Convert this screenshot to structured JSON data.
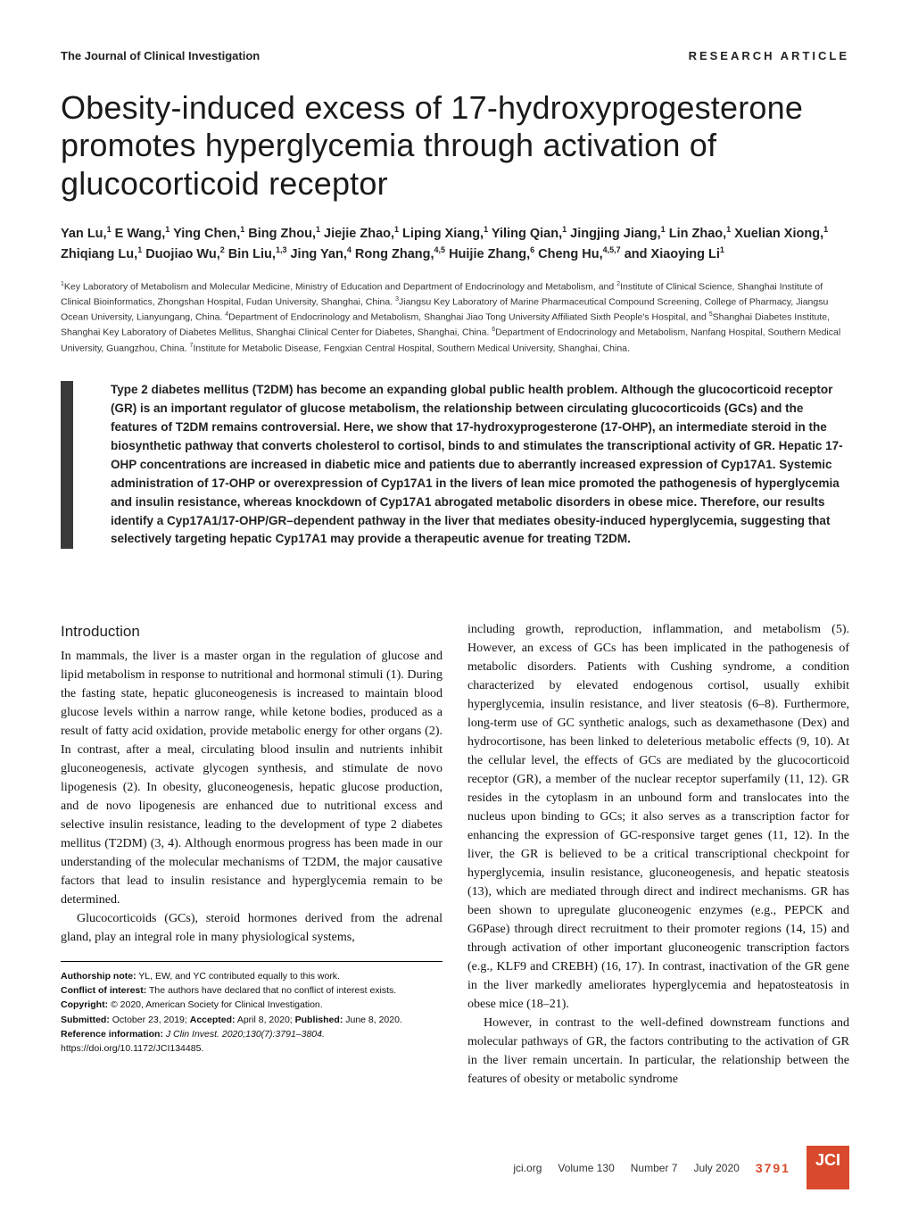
{
  "header": {
    "journal": "The Journal of Clinical Investigation",
    "type": "RESEARCH ARTICLE"
  },
  "title": "Obesity-induced excess of 17-hydroxyprogesterone promotes hyperglycemia through activation of glucocorticoid receptor",
  "authors_html": "Yan Lu,<sup>1</sup> E Wang,<sup>1</sup> Ying Chen,<sup>1</sup> Bing Zhou,<sup>1</sup> Jiejie Zhao,<sup>1</sup> Liping Xiang,<sup>1</sup> Yiling Qian,<sup>1</sup> Jingjing Jiang,<sup>1</sup> Lin Zhao,<sup>1</sup> Xuelian Xiong,<sup>1</sup> Zhiqiang Lu,<sup>1</sup> Duojiao Wu,<sup>2</sup> Bin Liu,<sup>1,3</sup> Jing Yan,<sup>4</sup> Rong Zhang,<sup>4,5</sup> Huijie Zhang,<sup>6</sup> Cheng Hu,<sup>4,5,7</sup> and Xiaoying Li<sup>1</sup>",
  "affiliations_html": "<sup>1</sup>Key Laboratory of Metabolism and Molecular Medicine, Ministry of Education and Department of Endocrinology and Metabolism, and <sup>2</sup>Institute of Clinical Science, Shanghai Institute of Clinical Bioinformatics, Zhongshan Hospital, Fudan University, Shanghai, China. <sup>3</sup>Jiangsu Key Laboratory of Marine Pharmaceutical Compound Screening, College of Pharmacy, Jiangsu Ocean University, Lianyungang, China. <sup>4</sup>Department of Endocrinology and Metabolism, Shanghai Jiao Tong University Affiliated Sixth People's Hospital, and <sup>5</sup>Shanghai Diabetes Institute, Shanghai Key Laboratory of Diabetes Mellitus, Shanghai Clinical Center for Diabetes, Shanghai, China. <sup>6</sup>Department of Endocrinology and Metabolism, Nanfang Hospital, Southern Medical University, Guangzhou, China. <sup>7</sup>Institute for Metabolic Disease, Fengxian Central Hospital, Southern Medical University, Shanghai, China.",
  "abstract": "Type 2 diabetes mellitus (T2DM) has become an expanding global public health problem. Although the glucocorticoid receptor (GR) is an important regulator of glucose metabolism, the relationship between circulating glucocorticoids (GCs) and the features of T2DM remains controversial. Here, we show that 17-hydroxyprogesterone (17-OHP), an intermediate steroid in the biosynthetic pathway that converts cholesterol to cortisol, binds to and stimulates the transcriptional activity of GR. Hepatic 17-OHP concentrations are increased in diabetic mice and patients due to aberrantly increased expression of Cyp17A1. Systemic administration of 17-OHP or overexpression of Cyp17A1 in the livers of lean mice promoted the pathogenesis of hyperglycemia and insulin resistance, whereas knockdown of Cyp17A1 abrogated metabolic disorders in obese mice. Therefore, our results identify a Cyp17A1/17-OHP/GR–dependent pathway in the liver that mediates obesity-induced hyperglycemia, suggesting that selectively targeting hepatic Cyp17A1 may provide a therapeutic avenue for treating T2DM.",
  "body": {
    "section_head": "Introduction",
    "col1_p1": "In mammals, the liver is a master organ in the regulation of glucose and lipid metabolism in response to nutritional and hormonal stimuli (1). During the fasting state, hepatic gluconeogenesis is increased to maintain blood glucose levels within a narrow range, while ketone bodies, produced as a result of fatty acid oxidation, provide metabolic energy for other organs (2). In contrast, after a meal, circulating blood insulin and nutrients inhibit gluconeogenesis, activate glycogen synthesis, and stimulate de novo lipogenesis (2). In obesity, gluconeogenesis, hepatic glucose production, and de novo lipogenesis are enhanced due to nutritional excess and selective insulin resistance, leading to the development of type 2 diabetes mellitus (T2DM) (3, 4). Although enormous progress has been made in our understanding of the molecular mechanisms of T2DM, the major causative factors that lead to insulin resistance and hyperglycemia remain to be determined.",
    "col1_p2": "Glucocorticoids (GCs), steroid hormones derived from the adrenal gland, play an integral role in many physiological systems,",
    "col2_p1": "including growth, reproduction, inflammation, and metabolism (5). However, an excess of GCs has been implicated in the pathogenesis of metabolic disorders. Patients with Cushing syndrome, a condition characterized by elevated endogenous cortisol, usually exhibit hyperglycemia, insulin resistance, and liver steatosis (6–8). Furthermore, long-term use of GC synthetic analogs, such as dexamethasone (Dex) and hydrocortisone, has been linked to deleterious metabolic effects (9, 10). At the cellular level, the effects of GCs are mediated by the glucocorticoid receptor (GR), a member of the nuclear receptor superfamily (11, 12). GR resides in the cytoplasm in an unbound form and translocates into the nucleus upon binding to GCs; it also serves as a transcription factor for enhancing the expression of GC-responsive target genes (11, 12). In the liver, the GR is believed to be a critical transcriptional checkpoint for hyperglycemia, insulin resistance, gluconeogenesis, and hepatic steatosis (13), which are mediated through direct and indirect mechanisms. GR has been shown to upregulate gluconeogenic enzymes (e.g., PEPCK and G6Pase) through direct recruitment to their promoter regions (14, 15) and through activation of other important gluconeogenic transcription factors (e.g., KLF9 and CREBH) (16, 17). In contrast, inactivation of the GR gene in the liver markedly ameliorates hyperglycemia and hepatosteatosis in obese mice (18–21).",
    "col2_p2": "However, in contrast to the well-defined downstream functions and molecular pathways of GR, the factors contributing to the activation of GR in the liver remain uncertain. In particular, the relationship between the features of obesity or metabolic syndrome"
  },
  "footnotes": {
    "authorship_label": "Authorship note:",
    "authorship": " YL, EW, and YC contributed equally to this work.",
    "coi_label": "Conflict of interest:",
    "coi": " The authors have declared that no conflict of interest exists.",
    "copyright_label": "Copyright:",
    "copyright": " © 2020, American Society for Clinical Investigation.",
    "dates_html": "<b>Submitted:</b> October 23, 2019; <b>Accepted:</b> April 8, 2020; <b>Published:</b> June 8, 2020.",
    "ref_label": "Reference information:",
    "ref": " J Clin Invest. 2020;130(7):3791–3804.",
    "doi": "https://doi.org/10.1172/JCI134485."
  },
  "footer": {
    "site": "jci.org",
    "vol": "Volume 130",
    "num": "Number 7",
    "date": "July 2020",
    "page": "3791",
    "badge": "JCI"
  },
  "colors": {
    "accent": "#d84a2b",
    "bar": "#3a3a3a"
  }
}
